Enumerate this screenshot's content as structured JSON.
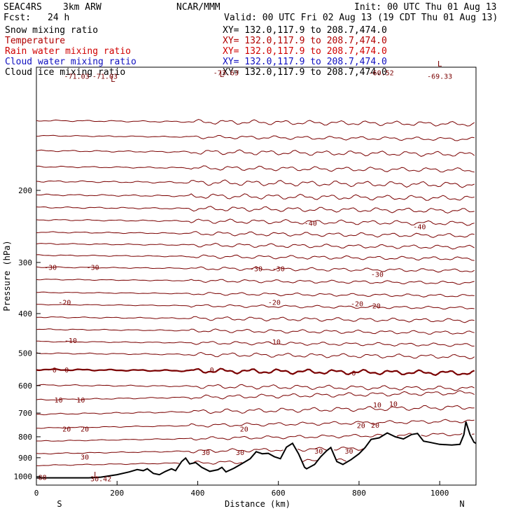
{
  "header": {
    "experiment": "SEAC4RS",
    "model": "3km ARW",
    "center": "NCAR/MMM",
    "init": "Init: 00 UTC Thu 01 Aug 13",
    "fcst_label": "Fcst:",
    "fcst_value": "24 h",
    "valid": "Valid: 00 UTC Fri 02 Aug 13 (19 CDT Thu 01 Aug 13)"
  },
  "fields": [
    {
      "label": "Snow mixing ratio",
      "xy": "",
      "color": "#000000"
    },
    {
      "label": "Temperature",
      "xy": "XY= 132.0,117.9 to 208.7,474.0",
      "color": "#b00000"
    },
    {
      "label": "Rain water mixing ratio",
      "xy": "XY= 132.0,117.9 to 208.7,474.0",
      "color": "#d00000"
    },
    {
      "label": "Cloud water mixing ratio",
      "xy": "XY= 132.0,117.9 to 208.7,474.0",
      "color": "#1010c0"
    },
    {
      "label": "Cloud ice mixing ratio",
      "xy": "XY= 132.0,117.9 to 208.7,474.0",
      "color": "#000000"
    }
  ],
  "snow_xy": "XY= 132.0,117.9 to 208.7,474.0",
  "colors": {
    "isotherm": "#7a0000",
    "terrain": "#000000",
    "label": "#7a0000"
  },
  "chart_data": {
    "type": "line",
    "xlabel": "Distance (km)",
    "ylabel": "Pressure (hPa)",
    "xlim": [
      0,
      1090
    ],
    "ylim": [
      1050,
      100
    ],
    "yscale": "log",
    "x_ticks": [
      0,
      200,
      400,
      600,
      800,
      1000
    ],
    "x_tick_labels": [
      "0",
      "200",
      "400",
      "600",
      "800",
      "1000"
    ],
    "y_ticks": [
      200,
      300,
      400,
      500,
      600,
      700,
      800,
      900,
      1000
    ],
    "y_tick_labels": [
      "200",
      "300",
      "400",
      "500",
      "600",
      "700",
      "800",
      "900",
      "1000"
    ],
    "left_end_label": "S",
    "right_end_label": "N",
    "terrain": {
      "x": [
        0,
        80,
        130,
        160,
        200,
        230,
        250,
        265,
        275,
        290,
        305,
        320,
        335,
        345,
        360,
        370,
        380,
        395,
        410,
        430,
        450,
        460,
        470,
        490,
        510,
        530,
        545,
        560,
        575,
        590,
        605,
        620,
        635,
        650,
        665,
        670,
        690,
        705,
        720,
        730,
        745,
        760,
        780,
        800,
        815,
        830,
        850,
        870,
        890,
        910,
        930,
        945,
        960,
        975,
        1000,
        1030,
        1050,
        1060,
        1065,
        1075,
        1085,
        1090
      ],
      "p": [
        1008,
        1008,
        1008,
        1004,
        990,
        975,
        962,
        968,
        958,
        983,
        990,
        972,
        958,
        968,
        920,
        902,
        932,
        925,
        950,
        972,
        963,
        950,
        975,
        955,
        930,
        905,
        870,
        880,
        878,
        895,
        905,
        848,
        830,
        880,
        950,
        958,
        935,
        895,
        865,
        850,
        920,
        935,
        910,
        880,
        850,
        812,
        805,
        783,
        800,
        810,
        790,
        785,
        820,
        825,
        835,
        838,
        835,
        790,
        735,
        790,
        825,
        830
      ]
    },
    "isotherms": [
      {
        "base_p": 135,
        "amp": 1.2
      },
      {
        "base_p": 147,
        "amp": 1.0
      },
      {
        "base_p": 160,
        "amp": 1.5
      },
      {
        "base_p": 175,
        "amp": 1.5
      },
      {
        "base_p": 190,
        "amp": 2
      },
      {
        "base_p": 205,
        "amp": 2
      },
      {
        "base_p": 220,
        "amp": 2
      },
      {
        "base_p": 236,
        "amp": 2
      },
      {
        "base_p": 253,
        "amp": 2
      },
      {
        "base_p": 270,
        "amp": 2
      },
      {
        "base_p": 288,
        "amp": 2
      },
      {
        "base_p": 308,
        "amp": 2
      },
      {
        "base_p": 330,
        "amp": 2
      },
      {
        "base_p": 355,
        "amp": 2
      },
      {
        "base_p": 380,
        "amp": 2
      },
      {
        "base_p": 408,
        "amp": 3
      },
      {
        "base_p": 437,
        "amp": 3
      },
      {
        "base_p": 468,
        "amp": 3
      },
      {
        "base_p": 500,
        "amp": 4
      },
      {
        "base_p": 548,
        "amp": 5,
        "bold": true
      },
      {
        "base_p": 598,
        "amp": 5
      },
      {
        "base_p": 650,
        "amp": 5
      },
      {
        "base_p": 705,
        "amp": 6
      },
      {
        "base_p": 762,
        "amp": 5
      },
      {
        "base_p": 820,
        "amp": 5
      },
      {
        "base_p": 880,
        "amp": 6
      },
      {
        "base_p": 940,
        "amp": 6
      }
    ],
    "contour_labels": [
      {
        "x": 100,
        "p": 105,
        "text": "-71.03"
      },
      {
        "x": 170,
        "p": 105,
        "text": "-71.03"
      },
      {
        "x": 470,
        "p": 103,
        "text": "-73.63"
      },
      {
        "x": 855,
        "p": 103,
        "text": "-60.52"
      },
      {
        "x": 1000,
        "p": 105,
        "text": "-69.33"
      },
      {
        "x": 680,
        "p": 240,
        "text": "-40"
      },
      {
        "x": 950,
        "p": 245,
        "text": "-40"
      },
      {
        "x": 35,
        "p": 308,
        "text": "-30"
      },
      {
        "x": 140,
        "p": 308,
        "text": "-30"
      },
      {
        "x": 545,
        "p": 310,
        "text": "-30"
      },
      {
        "x": 600,
        "p": 310,
        "text": "-30"
      },
      {
        "x": 845,
        "p": 320,
        "text": "-30"
      },
      {
        "x": 70,
        "p": 375,
        "text": "-20"
      },
      {
        "x": 590,
        "p": 375,
        "text": "-20"
      },
      {
        "x": 795,
        "p": 378,
        "text": "-20"
      },
      {
        "x": 838,
        "p": 382,
        "text": "-20"
      },
      {
        "x": 85,
        "p": 465,
        "text": "-10"
      },
      {
        "x": 590,
        "p": 468,
        "text": "-10"
      },
      {
        "x": 45,
        "p": 548,
        "text": "0"
      },
      {
        "x": 75,
        "p": 548,
        "text": "0"
      },
      {
        "x": 435,
        "p": 548,
        "text": "0"
      },
      {
        "x": 787,
        "p": 558,
        "text": "0"
      },
      {
        "x": 55,
        "p": 650,
        "text": "10"
      },
      {
        "x": 110,
        "p": 650,
        "text": "10"
      },
      {
        "x": 845,
        "p": 667,
        "text": "10"
      },
      {
        "x": 885,
        "p": 664,
        "text": "10"
      },
      {
        "x": 75,
        "p": 765,
        "text": "20"
      },
      {
        "x": 120,
        "p": 765,
        "text": "20"
      },
      {
        "x": 515,
        "p": 765,
        "text": "20"
      },
      {
        "x": 805,
        "p": 750,
        "text": "20"
      },
      {
        "x": 840,
        "p": 748,
        "text": "20"
      },
      {
        "x": 120,
        "p": 895,
        "text": "30"
      },
      {
        "x": 420,
        "p": 872,
        "text": "30"
      },
      {
        "x": 505,
        "p": 872,
        "text": "30"
      },
      {
        "x": 700,
        "p": 866,
        "text": "30"
      },
      {
        "x": 775,
        "p": 866,
        "text": "30"
      },
      {
        "x": 15,
        "p": 1003,
        "text": "88"
      },
      {
        "x": 160,
        "p": 1012,
        "text": "30.42"
      }
    ],
    "markers": [
      {
        "x": 190,
        "p": 107,
        "text": "L"
      },
      {
        "x": 460,
        "p": 104,
        "text": "L"
      },
      {
        "x": 1000,
        "p": 98,
        "text": "L"
      },
      {
        "x": 148,
        "p": 990,
        "text": "L"
      }
    ]
  }
}
